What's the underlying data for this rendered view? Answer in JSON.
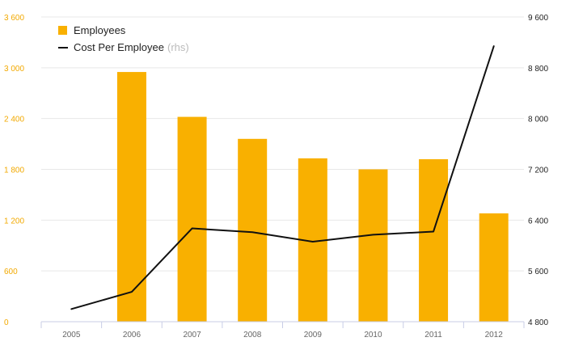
{
  "colors": {
    "background": "#ffffff",
    "gridline": "#e8e8e8",
    "axis": "#c8cde6",
    "left_tick": "#f2a900",
    "right_tick": "#222222",
    "x_tick": "#666666",
    "bar": "#f9b000",
    "line": "#111111",
    "legend_note": "#bbbbbb"
  },
  "chart_data": {
    "type": "bar",
    "categories": [
      "2005",
      "2006",
      "2007",
      "2008",
      "2009",
      "2010",
      "2011",
      "2012"
    ],
    "series": [
      {
        "name": "Employees",
        "type": "bar",
        "axis": "left",
        "values": [
          0,
          2950,
          2420,
          2160,
          1930,
          1800,
          1920,
          1280
        ]
      },
      {
        "name": "Cost Per Employee",
        "type": "line",
        "axis": "right",
        "values": [
          5000,
          5270,
          6270,
          6210,
          6060,
          6170,
          6220,
          9140
        ]
      }
    ],
    "yleft_ticks": [
      "0",
      "600",
      "1 200",
      "1 800",
      "2 400",
      "3 000",
      "3 600"
    ],
    "yright_ticks": [
      "4 800",
      "5 600",
      "6 400",
      "7 200",
      "8 000",
      "8 800",
      "9 600"
    ],
    "yleft_range": [
      0,
      3600
    ],
    "yright_range": [
      4800,
      9600
    ],
    "legend": {
      "position": "top-left",
      "bar_label": "Employees",
      "line_label": "Cost Per Employee",
      "line_suffix": "(rhs)"
    },
    "grid": true
  }
}
